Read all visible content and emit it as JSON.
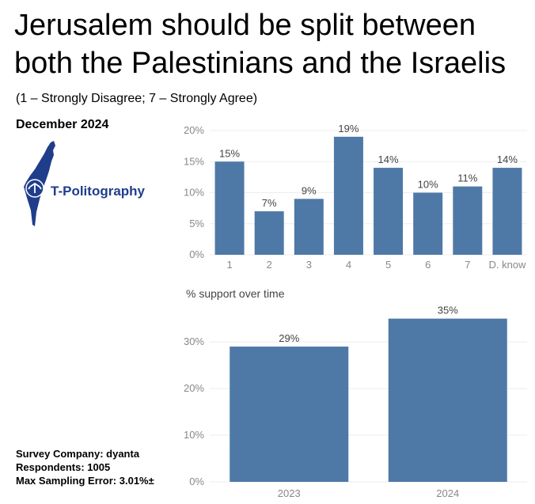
{
  "header": {
    "title_line1": "Jerusalem should be split between",
    "title_line2": "both the Palestinians and the Israelis",
    "subtitle": "(1 – Strongly Disagree; 7 – Strongly Agree)",
    "date": "December 2024"
  },
  "logo": {
    "icon": "israel-map-icon",
    "text": "T-Politography",
    "color": "#1f3d8a"
  },
  "footer": {
    "company": "Survey Company: dyanta",
    "respondents": "Respondents: 1005",
    "error": "Max Sampling Error: 3.01%±"
  },
  "colors": {
    "bar": "#4e79a7",
    "grid": "#eeeeee"
  },
  "chart_data": [
    {
      "type": "bar",
      "title": "",
      "categories": [
        "1",
        "2",
        "3",
        "4",
        "5",
        "6",
        "7",
        "D. know"
      ],
      "values": [
        15,
        7,
        9,
        19,
        14,
        10,
        11,
        14
      ],
      "value_labels": [
        "15%",
        "7%",
        "9%",
        "19%",
        "14%",
        "10%",
        "11%",
        "14%"
      ],
      "yticks": [
        "0%",
        "5%",
        "10%",
        "15%",
        "20%"
      ],
      "ylim": [
        0,
        20
      ],
      "grid": true
    },
    {
      "type": "bar",
      "title": "% support over time",
      "categories": [
        "2023",
        "2024"
      ],
      "values": [
        29,
        35
      ],
      "value_labels": [
        "29%",
        "35%"
      ],
      "yticks": [
        "0%",
        "10%",
        "20%",
        "30%"
      ],
      "ylim": [
        0,
        38
      ],
      "grid": true
    }
  ]
}
